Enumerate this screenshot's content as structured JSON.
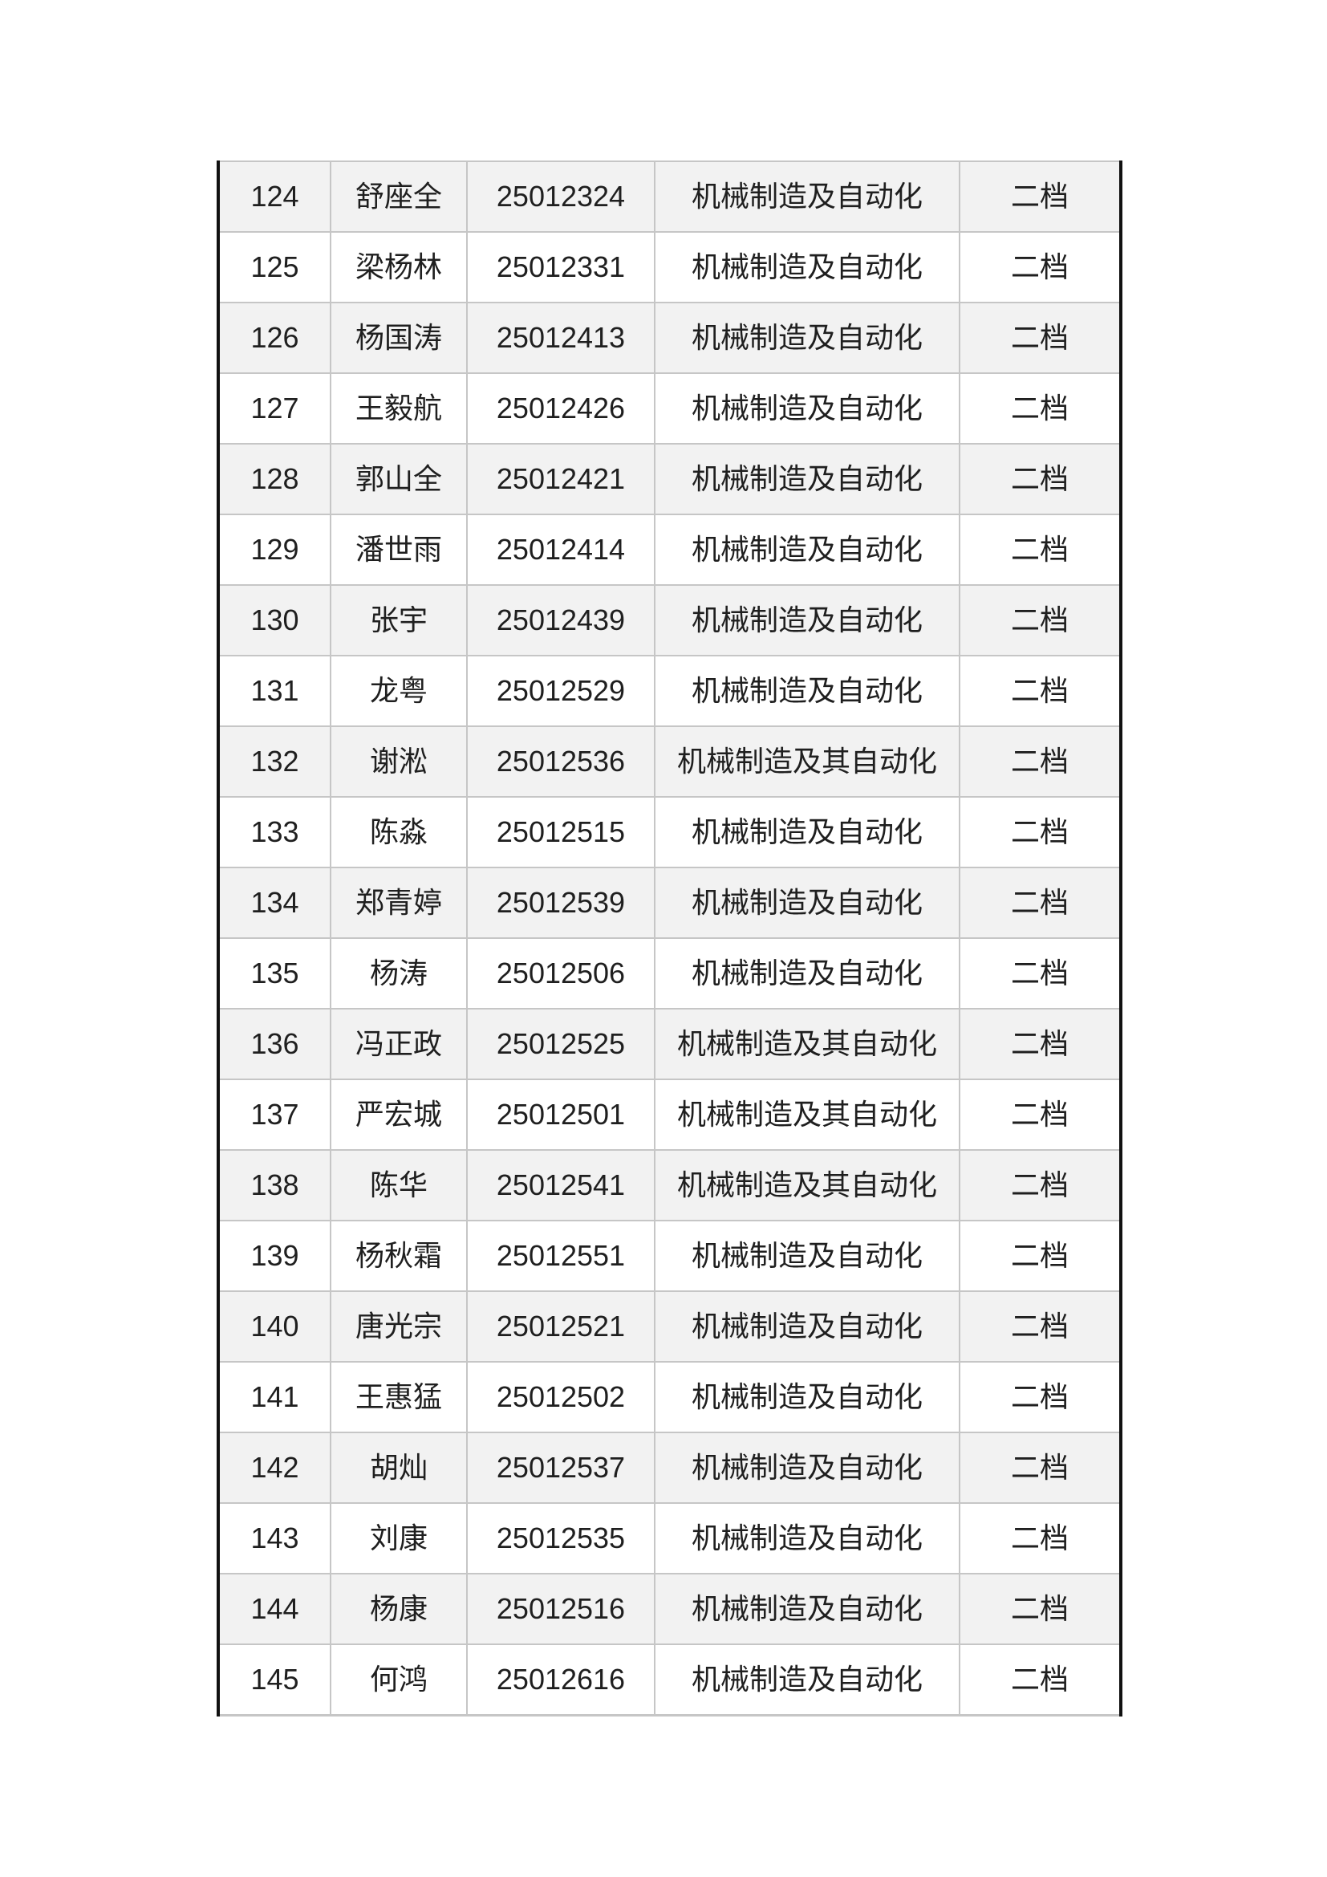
{
  "document": {
    "table": {
      "column_keys": [
        "index",
        "name",
        "student-id",
        "major",
        "tier"
      ],
      "rows": [
        [
          "124",
          "舒座全",
          "25012324",
          "机械制造及自动化",
          "二档"
        ],
        [
          "125",
          "梁杨林",
          "25012331",
          "机械制造及自动化",
          "二档"
        ],
        [
          "126",
          "杨国涛",
          "25012413",
          "机械制造及自动化",
          "二档"
        ],
        [
          "127",
          "王毅航",
          "25012426",
          "机械制造及自动化",
          "二档"
        ],
        [
          "128",
          "郭山全",
          "25012421",
          "机械制造及自动化",
          "二档"
        ],
        [
          "129",
          "潘世雨",
          "25012414",
          "机械制造及自动化",
          "二档"
        ],
        [
          "130",
          "张宇",
          "25012439",
          "机械制造及自动化",
          "二档"
        ],
        [
          "131",
          "龙粤",
          "25012529",
          "机械制造及自动化",
          "二档"
        ],
        [
          "132",
          "谢淞",
          "25012536",
          "机械制造及其自动化",
          "二档"
        ],
        [
          "133",
          "陈淼",
          "25012515",
          "机械制造及自动化",
          "二档"
        ],
        [
          "134",
          "郑青婷",
          "25012539",
          "机械制造及自动化",
          "二档"
        ],
        [
          "135",
          "杨涛",
          "25012506",
          "机械制造及自动化",
          "二档"
        ],
        [
          "136",
          "冯正政",
          "25012525",
          "机械制造及其自动化",
          "二档"
        ],
        [
          "137",
          "严宏城",
          "25012501",
          "机械制造及其自动化",
          "二档"
        ],
        [
          "138",
          "陈华",
          "25012541",
          "机械制造及其自动化",
          "二档"
        ],
        [
          "139",
          "杨秋霜",
          "25012551",
          "机械制造及自动化",
          "二档"
        ],
        [
          "140",
          "唐光宗",
          "25012521",
          "机械制造及自动化",
          "二档"
        ],
        [
          "141",
          "王惠猛",
          "25012502",
          "机械制造及自动化",
          "二档"
        ],
        [
          "142",
          "胡灿",
          "25012537",
          "机械制造及自动化",
          "二档"
        ],
        [
          "143",
          "刘康",
          "25012535",
          "机械制造及自动化",
          "二档"
        ],
        [
          "144",
          "杨康",
          "25012516",
          "机械制造及自动化",
          "二档"
        ],
        [
          "145",
          "何鸿",
          "25012616",
          "机械制造及自动化",
          "二档"
        ]
      ],
      "colors": {
        "text": "#1f1f1f",
        "row_bg": "#ffffff",
        "row_alt_bg": "#f2f2f2",
        "grid_border": "#c6c6c6",
        "outer_border": "#111111"
      }
    }
  }
}
